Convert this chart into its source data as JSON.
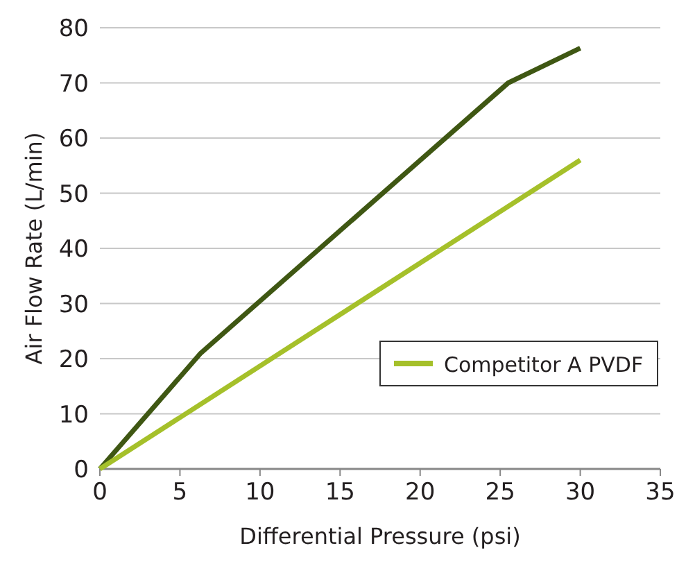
{
  "chart_data": {
    "type": "line",
    "xlabel": "Differential Pressure (psi)",
    "ylabel": "Air Flow Rate (L/min)",
    "xlim": [
      0,
      35
    ],
    "xticks": [
      0,
      5,
      10,
      15,
      20,
      25,
      30,
      35
    ],
    "ylim": [
      0,
      80
    ],
    "yticks": [
      0,
      10,
      20,
      30,
      40,
      50,
      60,
      70,
      80
    ],
    "grid": "y",
    "legend": "bottom right",
    "line_style": "solid",
    "series": [
      {
        "color": "#3f5713",
        "x": [
          0,
          6.3,
          25.5,
          30
        ],
        "values": [
          0,
          21,
          70,
          76.3
        ]
      },
      {
        "name": "Competitor A PVDF",
        "color": "#a5c02a",
        "x": [
          0,
          30
        ],
        "values": [
          0,
          56
        ]
      }
    ]
  }
}
